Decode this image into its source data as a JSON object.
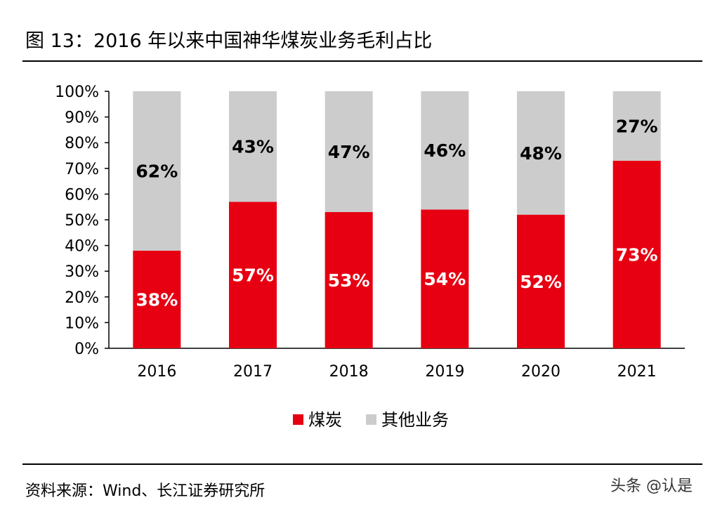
{
  "header": {
    "title": "图 13：2016 年以来中国神华煤炭业务毛利占比"
  },
  "footer": {
    "source": "资料来源：Wind、长江证券研究所",
    "watermark": "头条 @认是"
  },
  "colors": {
    "coal": "#e60012",
    "other": "#cccccc",
    "text_on_coal": "#ffffff",
    "text_on_other": "#000000"
  },
  "chart_data": {
    "type": "bar",
    "stacked": true,
    "categories": [
      "2016",
      "2017",
      "2018",
      "2019",
      "2020",
      "2021"
    ],
    "series": [
      {
        "name": "煤炭",
        "values": [
          38,
          57,
          53,
          54,
          52,
          73
        ],
        "labels": [
          "38%",
          "57%",
          "53%",
          "54%",
          "52%",
          "73%"
        ]
      },
      {
        "name": "其他业务",
        "values": [
          62,
          43,
          47,
          46,
          48,
          27
        ],
        "labels": [
          "62%",
          "43%",
          "47%",
          "46%",
          "48%",
          "27%"
        ]
      }
    ],
    "ylim": [
      0,
      100
    ],
    "yticks": [
      "0%",
      "10%",
      "20%",
      "30%",
      "40%",
      "50%",
      "60%",
      "70%",
      "80%",
      "90%",
      "100%"
    ],
    "grid": false,
    "legend": "bottom",
    "title": "",
    "xlabel": "",
    "ylabel": ""
  }
}
